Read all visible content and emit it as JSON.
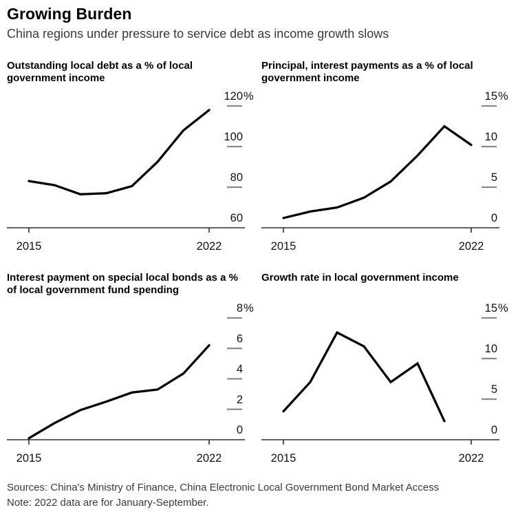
{
  "header": {
    "title": "Growing Burden",
    "subtitle": "China regions under pressure to service debt as income growth slows"
  },
  "footer": {
    "sources": "Sources: China's Ministry of Finance, China Electronic Local Government Bond Market Access",
    "note": "Note: 2022 data are for January-September."
  },
  "colors": {
    "line": "#000000",
    "axis": "#2d2d2d",
    "tick_dash": "#8a8a8a",
    "tick_text": "#111111"
  },
  "chart_data": [
    {
      "type": "line",
      "title": "Outstanding local debt as a % of local government income",
      "x": [
        2015,
        2016,
        2017,
        2018,
        2019,
        2020,
        2021,
        2022
      ],
      "values": [
        83,
        81,
        76.5,
        77,
        80.5,
        92.5,
        108,
        118
      ],
      "xlim": [
        2015,
        2022
      ],
      "xtick_labels": [
        "2015",
        "2022"
      ],
      "ylim": [
        60,
        120
      ],
      "yticks": [
        60,
        80,
        100,
        120
      ],
      "ytick_labels": [
        "60",
        "80",
        "100",
        "120%"
      ],
      "grid": false,
      "legend": "none"
    },
    {
      "type": "line",
      "title": "Principal, interest payments as a % of local government income",
      "x": [
        2015,
        2016,
        2017,
        2018,
        2019,
        2020,
        2021,
        2022
      ],
      "values": [
        1.2,
        2,
        2.5,
        3.7,
        5.7,
        8.9,
        12.5,
        10.2
      ],
      "xlim": [
        2015,
        2022
      ],
      "xtick_labels": [
        "2015",
        "2022"
      ],
      "ylim": [
        0,
        15
      ],
      "yticks": [
        0,
        5,
        10,
        15
      ],
      "ytick_labels": [
        "0",
        "5",
        "10",
        "15%"
      ],
      "grid": false,
      "legend": "none"
    },
    {
      "type": "line",
      "title": "Interest payment on special local bonds as a % of local government fund spending",
      "x": [
        2015,
        2016,
        2017,
        2018,
        2019,
        2020,
        2021,
        2022
      ],
      "values": [
        0.1,
        1.1,
        1.95,
        2.5,
        3.1,
        3.3,
        4.35,
        6.2
      ],
      "xlim": [
        2015,
        2022
      ],
      "xtick_labels": [
        "2015",
        "2022"
      ],
      "ylim": [
        0,
        8
      ],
      "yticks": [
        0,
        2,
        4,
        6,
        8
      ],
      "ytick_labels": [
        "0",
        "2",
        "4",
        "6",
        "8%"
      ],
      "grid": false,
      "legend": "none"
    },
    {
      "type": "line",
      "title": "Growth rate in local government income",
      "x": [
        2015,
        2016,
        2017,
        2018,
        2019,
        2020,
        2021
      ],
      "values": [
        3.5,
        7.1,
        13.2,
        11.5,
        7.1,
        9.4,
        2.3
      ],
      "xlim": [
        2015,
        2022
      ],
      "xtick_labels": [
        "2015",
        "2022"
      ],
      "ylim": [
        0,
        15
      ],
      "yticks": [
        0,
        5,
        10,
        15
      ],
      "ytick_labels": [
        "0",
        "5",
        "10",
        "15%"
      ],
      "grid": false,
      "legend": "none"
    }
  ]
}
